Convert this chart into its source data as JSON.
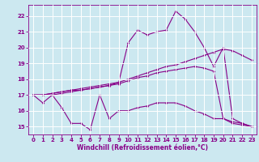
{
  "xlabel": "Windchill (Refroidissement éolien,°C)",
  "bg_color": "#cce8f0",
  "line_color": "#880088",
  "grid_color": "#ffffff",
  "xlim": [
    -0.5,
    23.5
  ],
  "ylim": [
    14.5,
    22.7
  ],
  "yticks": [
    15,
    16,
    17,
    18,
    19,
    20,
    21,
    22
  ],
  "xticks": [
    0,
    1,
    2,
    3,
    4,
    5,
    6,
    7,
    8,
    9,
    10,
    11,
    12,
    13,
    14,
    15,
    16,
    17,
    18,
    19,
    20,
    21,
    22,
    23
  ],
  "hours": [
    0,
    1,
    2,
    3,
    4,
    5,
    6,
    7,
    8,
    9,
    10,
    11,
    12,
    13,
    14,
    15,
    16,
    17,
    18,
    19,
    20,
    21,
    22,
    23
  ],
  "line1": [
    17.0,
    16.5,
    17.0,
    16.2,
    15.2,
    15.2,
    14.8,
    17.0,
    15.5,
    16.0,
    16.0,
    16.2,
    16.3,
    16.5,
    16.5,
    16.5,
    16.3,
    16.0,
    15.8,
    15.5,
    15.5,
    15.2,
    15.1,
    15.0
  ],
  "line2": [
    17.0,
    17.0,
    17.1,
    17.2,
    17.3,
    17.3,
    17.4,
    17.5,
    17.6,
    17.7,
    17.9,
    18.1,
    18.2,
    18.4,
    18.5,
    18.6,
    18.7,
    18.8,
    18.7,
    18.5,
    15.5,
    15.3,
    15.2,
    15.0
  ],
  "line3": [
    17.0,
    17.0,
    17.1,
    17.2,
    17.3,
    17.4,
    17.5,
    17.6,
    17.7,
    17.8,
    18.0,
    18.2,
    18.4,
    18.6,
    18.8,
    18.9,
    19.1,
    19.3,
    19.5,
    19.7,
    19.9,
    19.8,
    19.5,
    19.2
  ],
  "line4": [
    17.0,
    17.0,
    17.0,
    17.1,
    17.2,
    17.3,
    17.4,
    17.5,
    17.6,
    17.8,
    20.3,
    21.1,
    20.8,
    21.0,
    21.1,
    22.3,
    21.8,
    21.0,
    20.0,
    18.8,
    20.0,
    15.5,
    15.2,
    15.0
  ]
}
